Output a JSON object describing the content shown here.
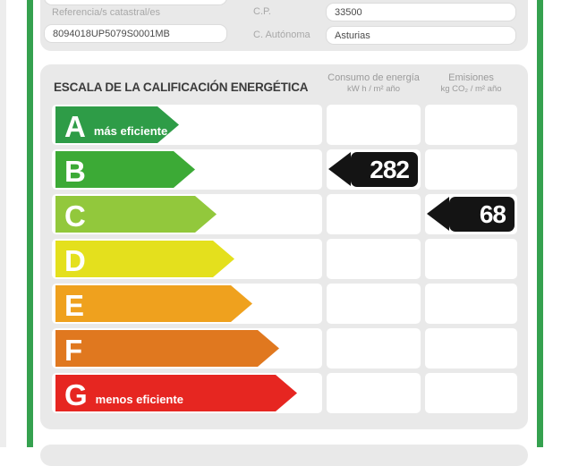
{
  "form": {
    "catastral_label": "Referencia/s catastral/es",
    "catastral_value": "8094018UP5079S0001MB",
    "cp_label": "C.P.",
    "cp_value": "33500",
    "autonoma_label": "C. Autónoma",
    "autonoma_value": "Asturias"
  },
  "scale": {
    "title": "ESCALA DE LA CALIFICACIÓN ENERGÉTICA",
    "consumo_header": {
      "title": "Consumo de energía",
      "unit": "kW h / m² año"
    },
    "emisiones_header": {
      "title": "Emisiones",
      "unit": "kg CO₂ / m² año"
    },
    "ratings": [
      {
        "letter": "A",
        "note": "más eficiente",
        "color": "#2e9c47"
      },
      {
        "letter": "B",
        "color": "#3caa36"
      },
      {
        "letter": "C",
        "color": "#92c83c"
      },
      {
        "letter": "D",
        "color": "#e4e01d"
      },
      {
        "letter": "E",
        "color": "#efa11e"
      },
      {
        "letter": "F",
        "color": "#e0781f"
      },
      {
        "letter": "G",
        "note": "menos eficiente",
        "color": "#e62621"
      }
    ],
    "values": {
      "consumo": {
        "rating": "B",
        "value": "282"
      },
      "emisiones": {
        "rating": "C",
        "value": "68"
      }
    }
  },
  "colors": {
    "frame_green": "#35a14f",
    "panel_gray": "#e9e9e9",
    "value_arrow_black": "#141414"
  }
}
